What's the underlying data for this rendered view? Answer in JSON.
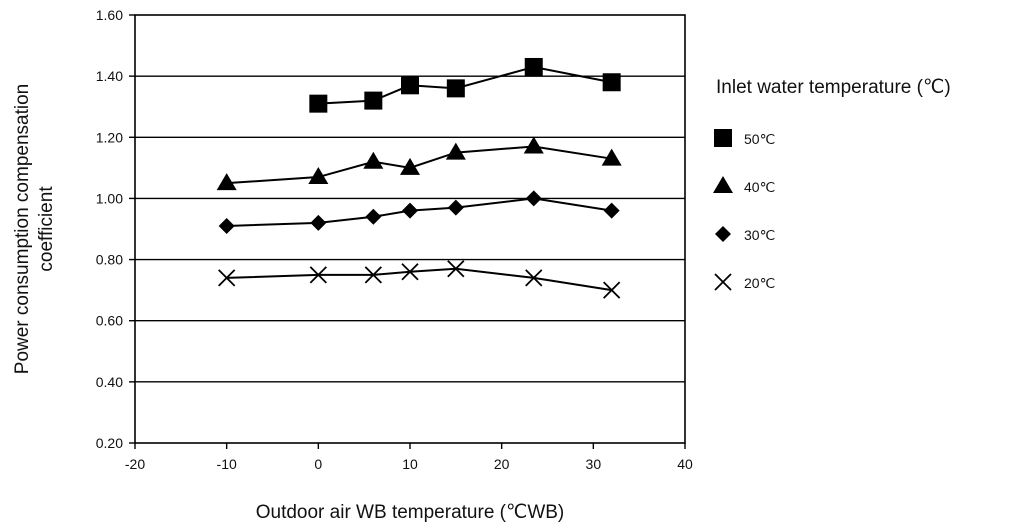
{
  "chart_data": {
    "type": "line",
    "xlabel": "Outdoor air WB temperature (℃WB)",
    "ylabel_lines": [
      "Power consumption compensation",
      "coefficient"
    ],
    "xlim": [
      -20,
      40
    ],
    "ylim": [
      0.2,
      1.6
    ],
    "x_ticks": [
      "-20",
      "-10",
      "0",
      "10",
      "20",
      "30",
      "40"
    ],
    "y_ticks": [
      "0.20",
      "0.40",
      "0.60",
      "0.80",
      "1.00",
      "1.20",
      "1.40",
      "1.60"
    ],
    "grid": "horizontal",
    "legend": {
      "title": "Inlet water temperature (℃)",
      "placement": "right"
    },
    "series": [
      {
        "name": "50℃",
        "marker": "square",
        "x": [
          0,
          6,
          10,
          15,
          23.5,
          32
        ],
        "y": [
          1.31,
          1.32,
          1.37,
          1.36,
          1.43,
          1.38
        ]
      },
      {
        "name": "40℃",
        "marker": "triangle",
        "x": [
          -10,
          0,
          6,
          10,
          15,
          23.5,
          32
        ],
        "y": [
          1.05,
          1.07,
          1.12,
          1.1,
          1.15,
          1.17,
          1.13
        ]
      },
      {
        "name": "30℃",
        "marker": "diamond",
        "x": [
          -10,
          0,
          6,
          10,
          15,
          23.5,
          32
        ],
        "y": [
          0.91,
          0.92,
          0.94,
          0.96,
          0.97,
          1.0,
          0.96
        ]
      },
      {
        "name": "20℃",
        "marker": "cross",
        "x": [
          -10,
          0,
          6,
          10,
          15,
          23.5,
          32
        ],
        "y": [
          0.74,
          0.75,
          0.75,
          0.76,
          0.77,
          0.74,
          0.7
        ]
      }
    ],
    "colors": {
      "line": "#000000",
      "marker": "#000000",
      "grid": "#000000"
    }
  }
}
